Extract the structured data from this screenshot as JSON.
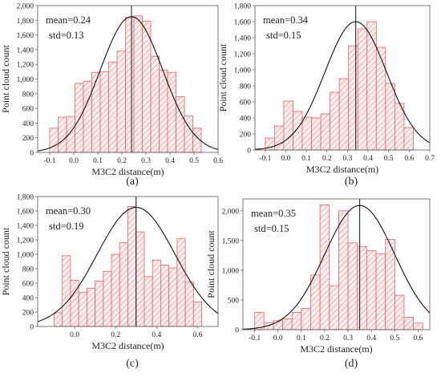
{
  "chart_data": [
    {
      "panel": "(a)",
      "type": "bar",
      "subtype": "histogram-with-normal-fit",
      "xlabel": "M3C2 distance(m)",
      "ylabel": "Point cloud count",
      "stats": {
        "mean": "mean=0.24",
        "std": "std=0.13"
      },
      "mean_value": 0.24,
      "std_value": 0.13,
      "xlim": [
        -0.15,
        0.6
      ],
      "ylim": [
        0,
        2000
      ],
      "xticks": [
        -0.1,
        0.0,
        0.1,
        0.2,
        0.3,
        0.4,
        0.5,
        0.6
      ],
      "xtick_labels": [
        "-0.1",
        "0.0",
        "0.1",
        "0.2",
        "0.3",
        "0.4",
        "0.5",
        "0.6"
      ],
      "yticks": [
        0,
        200,
        400,
        600,
        800,
        1000,
        1200,
        1400,
        1600,
        1800,
        2000
      ],
      "ytick_labels": [
        "0",
        "200",
        "400",
        "600",
        "800",
        "1,000",
        "1,200",
        "1,400",
        "1,600",
        "1,800",
        "2,000"
      ],
      "bins": [
        [
          -0.1,
          -0.065
        ],
        [
          -0.065,
          -0.03
        ],
        [
          -0.03,
          0.005
        ],
        [
          0.005,
          0.04
        ],
        [
          0.04,
          0.075
        ],
        [
          0.075,
          0.11
        ],
        [
          0.11,
          0.145
        ],
        [
          0.145,
          0.18
        ],
        [
          0.18,
          0.215
        ],
        [
          0.215,
          0.25
        ],
        [
          0.25,
          0.285
        ],
        [
          0.285,
          0.32
        ],
        [
          0.32,
          0.355
        ],
        [
          0.355,
          0.39
        ],
        [
          0.39,
          0.425
        ],
        [
          0.425,
          0.46
        ],
        [
          0.46,
          0.495
        ],
        [
          0.495,
          0.53
        ]
      ],
      "values": [
        330,
        480,
        490,
        940,
        970,
        1090,
        1100,
        1230,
        1380,
        1840,
        1860,
        1790,
        1310,
        1120,
        1090,
        760,
        500,
        330
      ],
      "curve_peak": 1850
    },
    {
      "panel": "(b)",
      "type": "bar",
      "subtype": "histogram-with-normal-fit",
      "xlabel": "M3C2 distance(m)",
      "ylabel": "Point cloud count",
      "stats": {
        "mean": "mean=0.34",
        "std": "std=0.15"
      },
      "mean_value": 0.34,
      "std_value": 0.15,
      "xlim": [
        -0.15,
        0.7
      ],
      "ylim": [
        0,
        1800
      ],
      "xticks": [
        -0.1,
        0.0,
        0.1,
        0.2,
        0.3,
        0.4,
        0.5,
        0.6,
        0.7
      ],
      "xtick_labels": [
        "-0.1",
        "0.0",
        "0.1",
        "0.2",
        "0.3",
        "0.4",
        "0.5",
        "0.6",
        "0.7"
      ],
      "yticks": [
        0,
        200,
        400,
        600,
        800,
        1000,
        1200,
        1400,
        1600,
        1800
      ],
      "ytick_labels": [
        "0",
        "200",
        "400",
        "600",
        "800",
        "1,000",
        "1,200",
        "1,400",
        "1,600",
        "1,800"
      ],
      "bins": [
        [
          -0.1,
          -0.055
        ],
        [
          -0.055,
          -0.01
        ],
        [
          -0.01,
          0.035
        ],
        [
          0.035,
          0.08
        ],
        [
          0.08,
          0.125
        ],
        [
          0.125,
          0.17
        ],
        [
          0.17,
          0.215
        ],
        [
          0.215,
          0.26
        ],
        [
          0.26,
          0.305
        ],
        [
          0.305,
          0.35
        ],
        [
          0.35,
          0.395
        ],
        [
          0.395,
          0.44
        ],
        [
          0.44,
          0.485
        ],
        [
          0.485,
          0.53
        ],
        [
          0.53,
          0.575
        ],
        [
          0.575,
          0.62
        ]
      ],
      "values": [
        150,
        300,
        610,
        480,
        410,
        400,
        450,
        720,
        890,
        1300,
        1510,
        1600,
        1280,
        830,
        580,
        280
      ],
      "curve_peak": 1600
    },
    {
      "panel": "(c)",
      "type": "bar",
      "subtype": "histogram-with-normal-fit",
      "xlabel": "M3C2 distance(m)",
      "ylabel": "Point cloud count",
      "stats": {
        "mean": "mean=0.30",
        "std": "std=0.19"
      },
      "mean_value": 0.3,
      "std_value": 0.19,
      "xlim": [
        -0.18,
        0.7
      ],
      "ylim": [
        0,
        1800
      ],
      "xticks": [
        0.0,
        0.2,
        0.4,
        0.6
      ],
      "xtick_labels": [
        "0.0",
        "0.2",
        "0.4",
        "0.6"
      ],
      "yticks": [
        0,
        200,
        400,
        600,
        800,
        1000,
        1200,
        1400,
        1600,
        1800
      ],
      "ytick_labels": [
        "0",
        "200",
        "400",
        "600",
        "800",
        "1,000",
        "1,200",
        "1,400",
        "1,600",
        "1,800"
      ],
      "bins": [
        [
          -0.1,
          -0.06
        ],
        [
          -0.06,
          -0.02
        ],
        [
          -0.02,
          0.02
        ],
        [
          0.02,
          0.06
        ],
        [
          0.06,
          0.1
        ],
        [
          0.1,
          0.14
        ],
        [
          0.14,
          0.18
        ],
        [
          0.18,
          0.22
        ],
        [
          0.22,
          0.26
        ],
        [
          0.26,
          0.3
        ],
        [
          0.3,
          0.34
        ],
        [
          0.34,
          0.38
        ],
        [
          0.38,
          0.42
        ],
        [
          0.42,
          0.46
        ],
        [
          0.46,
          0.5
        ],
        [
          0.5,
          0.54
        ],
        [
          0.54,
          0.58
        ],
        [
          0.58,
          0.62
        ]
      ],
      "values": [
        190,
        980,
        640,
        470,
        530,
        630,
        760,
        1000,
        1160,
        1660,
        1310,
        690,
        920,
        850,
        810,
        1220,
        620,
        340
      ],
      "curve_peak": 1650
    },
    {
      "panel": "(d)",
      "type": "bar",
      "subtype": "histogram-with-normal-fit",
      "xlabel": "M3C2 distance(m)",
      "ylabel": "Point cloud count",
      "stats": {
        "mean": "mean=0.35",
        "std": "std=0.15"
      },
      "mean_value": 0.35,
      "std_value": 0.15,
      "xlim": [
        -0.15,
        0.65
      ],
      "ylim": [
        0,
        2200
      ],
      "xticks": [
        -0.1,
        0.0,
        0.1,
        0.2,
        0.3,
        0.4,
        0.5,
        0.6
      ],
      "xtick_labels": [
        "-0.1",
        "0.0",
        "0.1",
        "0.2",
        "0.3",
        "0.4",
        "0.5",
        "0.6"
      ],
      "yticks": [
        0,
        500,
        1000,
        1500,
        2000
      ],
      "ytick_labels": [
        "0",
        "500",
        "1,000",
        "1,500",
        "2,000"
      ],
      "bins": [
        [
          -0.1,
          -0.06
        ],
        [
          -0.06,
          -0.02
        ],
        [
          -0.02,
          0.02
        ],
        [
          0.02,
          0.06
        ],
        [
          0.06,
          0.1
        ],
        [
          0.1,
          0.14
        ],
        [
          0.14,
          0.18
        ],
        [
          0.18,
          0.22
        ],
        [
          0.22,
          0.26
        ],
        [
          0.26,
          0.3
        ],
        [
          0.3,
          0.34
        ],
        [
          0.34,
          0.38
        ],
        [
          0.38,
          0.42
        ],
        [
          0.42,
          0.46
        ],
        [
          0.46,
          0.5
        ],
        [
          0.5,
          0.54
        ],
        [
          0.54,
          0.58
        ],
        [
          0.58,
          0.62
        ]
      ],
      "values": [
        290,
        120,
        150,
        180,
        290,
        360,
        920,
        2100,
        740,
        2000,
        1460,
        1400,
        1330,
        1280,
        1520,
        580,
        210,
        110
      ],
      "curve_peak": 2090
    }
  ],
  "colors": {
    "bar_fill": "#fdeeee",
    "bar_edge": "#e06464",
    "hatch": "#e06464",
    "curve": "#111111"
  }
}
